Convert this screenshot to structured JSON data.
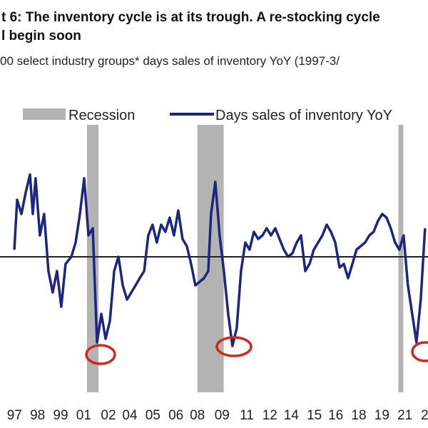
{
  "chart_data": {
    "type": "line",
    "title": "t 6: The inventory cycle is at its trough. A re-stocking cycle",
    "title_line2": "l begin soon",
    "subtitle": "00 select industry groups* days sales of inventory YoY (1997-3/",
    "recession_label": "Recession",
    "recessions": [
      [
        2001.2,
        2001.9
      ],
      [
        2007.9,
        2009.5
      ],
      [
        2020.1,
        2020.4
      ]
    ],
    "recession_color": "#b3b3b3",
    "xlim": [
      1995.92,
      2021.9
    ],
    "ylim": [
      -30,
      30
    ],
    "xticks": [
      {
        "value": 1996.8,
        "label": "97"
      },
      {
        "value": 1998.2,
        "label": "98"
      },
      {
        "value": 1999.6,
        "label": "99"
      },
      {
        "value": 2001.0,
        "label": "01"
      },
      {
        "value": 2002.5,
        "label": "02"
      },
      {
        "value": 2003.8,
        "label": "04"
      },
      {
        "value": 2005.2,
        "label": "05"
      },
      {
        "value": 2006.6,
        "label": "06"
      },
      {
        "value": 2007.9,
        "label": "08"
      },
      {
        "value": 2009.4,
        "label": "09"
      },
      {
        "value": 2010.9,
        "label": "11"
      },
      {
        "value": 2012.3,
        "label": "12"
      },
      {
        "value": 2013.6,
        "label": "14"
      },
      {
        "value": 2015.0,
        "label": "15"
      },
      {
        "value": 2016.3,
        "label": "16"
      },
      {
        "value": 2017.7,
        "label": "18"
      },
      {
        "value": 2019.1,
        "label": "19"
      },
      {
        "value": 2020.5,
        "label": "21"
      },
      {
        "value": 2021.7,
        "label": "2"
      }
    ],
    "zero_line": 0,
    "series": [
      {
        "name": "Days sales of inventory YoY",
        "color": "#1c2680",
        "x": [
          1996.79,
          1996.96,
          1997.22,
          1997.48,
          1997.74,
          1997.91,
          1998.08,
          1998.34,
          1998.6,
          1998.86,
          1999.12,
          1999.38,
          1999.64,
          1999.9,
          2000.25,
          2000.51,
          2000.77,
          2001.03,
          2001.29,
          2001.55,
          2001.81,
          2002.07,
          2002.33,
          2002.59,
          2002.85,
          2003.11,
          2003.37,
          2003.63,
          2003.89,
          2004.15,
          2004.4,
          2004.67,
          2004.92,
          2005.18,
          2005.44,
          2005.7,
          2005.96,
          2006.22,
          2006.48,
          2006.74,
          2007.0,
          2007.26,
          2007.52,
          2007.78,
          2008.04,
          2008.3,
          2008.56,
          2008.73,
          2008.99,
          2009.25,
          2009.51,
          2009.77,
          2010.03,
          2010.29,
          2010.55,
          2010.81,
          2011.07,
          2011.33,
          2011.59,
          2011.85,
          2012.11,
          2012.37,
          2012.63,
          2012.89,
          2013.15,
          2013.41,
          2013.67,
          2013.93,
          2014.19,
          2014.45,
          2014.71,
          2014.97,
          2015.23,
          2015.49,
          2015.75,
          2016.01,
          2016.27,
          2016.53,
          2016.79,
          2017.05,
          2017.31,
          2017.56,
          2017.82,
          2018.08,
          2018.34,
          2018.6,
          2018.86,
          2019.12,
          2019.38,
          2019.64,
          2019.9,
          2020.16,
          2020.42,
          2020.68,
          2020.94,
          2021.2,
          2021.46,
          2021.72
        ],
        "values": [
          1.5,
          12,
          9,
          13.5,
          17.3,
          9,
          16.5,
          4.5,
          9,
          -3,
          -7.5,
          -3,
          -10.5,
          -1.5,
          0,
          3,
          9,
          16.5,
          4.5,
          6,
          -18,
          -12,
          -17.25,
          -13.5,
          -3,
          0,
          -6,
          -9,
          -7.5,
          -6,
          -4.5,
          -3,
          4.5,
          6.75,
          3,
          6.75,
          5.25,
          8.25,
          4.5,
          9.75,
          3.75,
          2.25,
          -1.5,
          -6,
          -5.25,
          -4.5,
          -3,
          9,
          15.75,
          4.5,
          -3,
          -12,
          -18.75,
          -15,
          -3,
          3,
          1.5,
          5.25,
          3.75,
          4.5,
          6,
          4.5,
          6,
          3.75,
          1.5,
          0,
          0.75,
          3,
          4.5,
          -3,
          -1.5,
          1.5,
          3,
          4.5,
          6.75,
          5.25,
          3,
          -2.25,
          -1.5,
          -4.5,
          -1.5,
          1.5,
          2.25,
          3,
          4.5,
          5.25,
          7.5,
          9,
          8.25,
          6,
          3,
          1.5,
          4.5,
          -6,
          -12,
          -18,
          -9,
          6
        ]
      }
    ]
  }
}
